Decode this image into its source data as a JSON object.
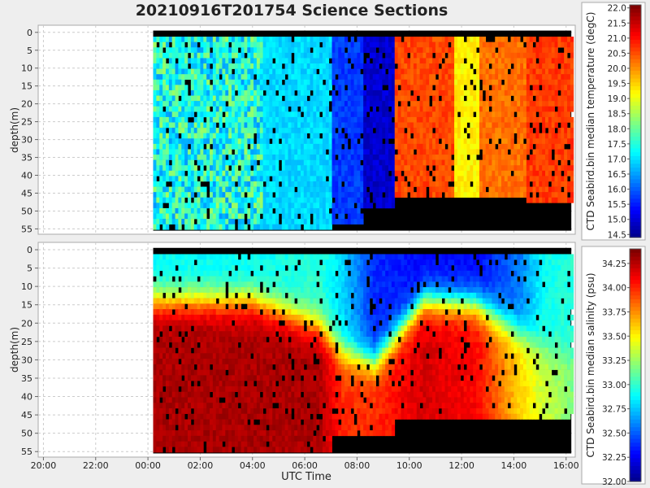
{
  "chart_data": [
    {
      "type": "heatmap",
      "title": "20210916T201754 Science Sections",
      "xlabel": "",
      "ylabel": "depth(m)",
      "colorbar_label": "CTD Seabird.bin median temperature (degC)",
      "colorbar_ticks": [
        "22.0",
        "21.5",
        "21.0",
        "20.5",
        "20.0",
        "19.5",
        "19.0",
        "18.5",
        "18.0",
        "17.5",
        "17.0",
        "16.5",
        "16.0",
        "15.5",
        "15.0",
        "14.5"
      ],
      "colorbar_range": [
        14.4,
        22.1
      ],
      "y_ticks": [
        "0",
        "5",
        "10",
        "15",
        "20",
        "25",
        "30",
        "35",
        "40",
        "45",
        "50",
        "55"
      ],
      "ylim": [
        56.5,
        -2
      ],
      "x_range_hours": [
        -4.2,
        16.35
      ],
      "segments": [
        {
          "from": 0.2,
          "to": 4.4,
          "value": 17.5,
          "bottom": 55,
          "note": "mixed"
        },
        {
          "from": 4.4,
          "to": 7.0,
          "value": 17.0,
          "bottom": 55
        },
        {
          "from": 7.0,
          "to": 8.2,
          "value": 15.8,
          "bottom": 53
        },
        {
          "from": 8.2,
          "to": 9.4,
          "value": 15.0,
          "bottom": 48
        },
        {
          "from": 9.4,
          "to": 11.6,
          "value": 20.6,
          "bottom": 46
        },
        {
          "from": 11.6,
          "to": 12.6,
          "value": 19.3,
          "bottom": 45
        },
        {
          "from": 12.6,
          "to": 14.4,
          "value": 20.3,
          "bottom": 45
        },
        {
          "from": 14.4,
          "to": 16.2,
          "value": 20.7,
          "bottom": 47
        }
      ]
    },
    {
      "type": "heatmap",
      "title": "",
      "xlabel": "UTC Time",
      "ylabel": "depth(m)",
      "colorbar_label": "CTD Seabird.bin median salinity (psu)",
      "colorbar_ticks": [
        "34.25",
        "34.00",
        "33.75",
        "33.50",
        "33.25",
        "33.00",
        "32.75",
        "32.50",
        "32.25",
        "32.00"
      ],
      "colorbar_range": [
        32.0,
        34.4
      ],
      "y_ticks": [
        "0",
        "5",
        "10",
        "15",
        "20",
        "25",
        "30",
        "35",
        "40",
        "45",
        "50",
        "55"
      ],
      "x_ticks": [
        "20:00",
        "22:00",
        "00:00",
        "02:00",
        "04:00",
        "06:00",
        "08:00",
        "10:00",
        "12:00",
        "14:00",
        "16:00"
      ],
      "ylim": [
        56.5,
        -2
      ],
      "profile_by_time": [
        {
          "t": 0.2,
          "surface": 32.9,
          "deep": 34.3,
          "thermocline_depth": 13
        },
        {
          "t": 4.0,
          "surface": 32.9,
          "deep": 34.3,
          "thermocline_depth": 13
        },
        {
          "t": 6.5,
          "surface": 33.0,
          "deep": 34.3,
          "thermocline_depth": 20
        },
        {
          "t": 7.4,
          "surface": 32.8,
          "deep": 34.0,
          "thermocline_depth": 27
        },
        {
          "t": 8.6,
          "surface": 32.4,
          "deep": 34.0,
          "thermocline_depth": 30
        },
        {
          "t": 10.5,
          "surface": 32.3,
          "deep": 34.2,
          "thermocline_depth": 13
        },
        {
          "t": 12.5,
          "surface": 32.3,
          "deep": 34.1,
          "thermocline_depth": 14
        },
        {
          "t": 14.2,
          "surface": 32.6,
          "deep": 33.6,
          "thermocline_depth": 22
        },
        {
          "t": 15.0,
          "surface": 32.9,
          "deep": 33.4,
          "thermocline_depth": 25
        },
        {
          "t": 16.2,
          "surface": 33.0,
          "deep": 33.2,
          "thermocline_depth": 28
        }
      ]
    }
  ]
}
